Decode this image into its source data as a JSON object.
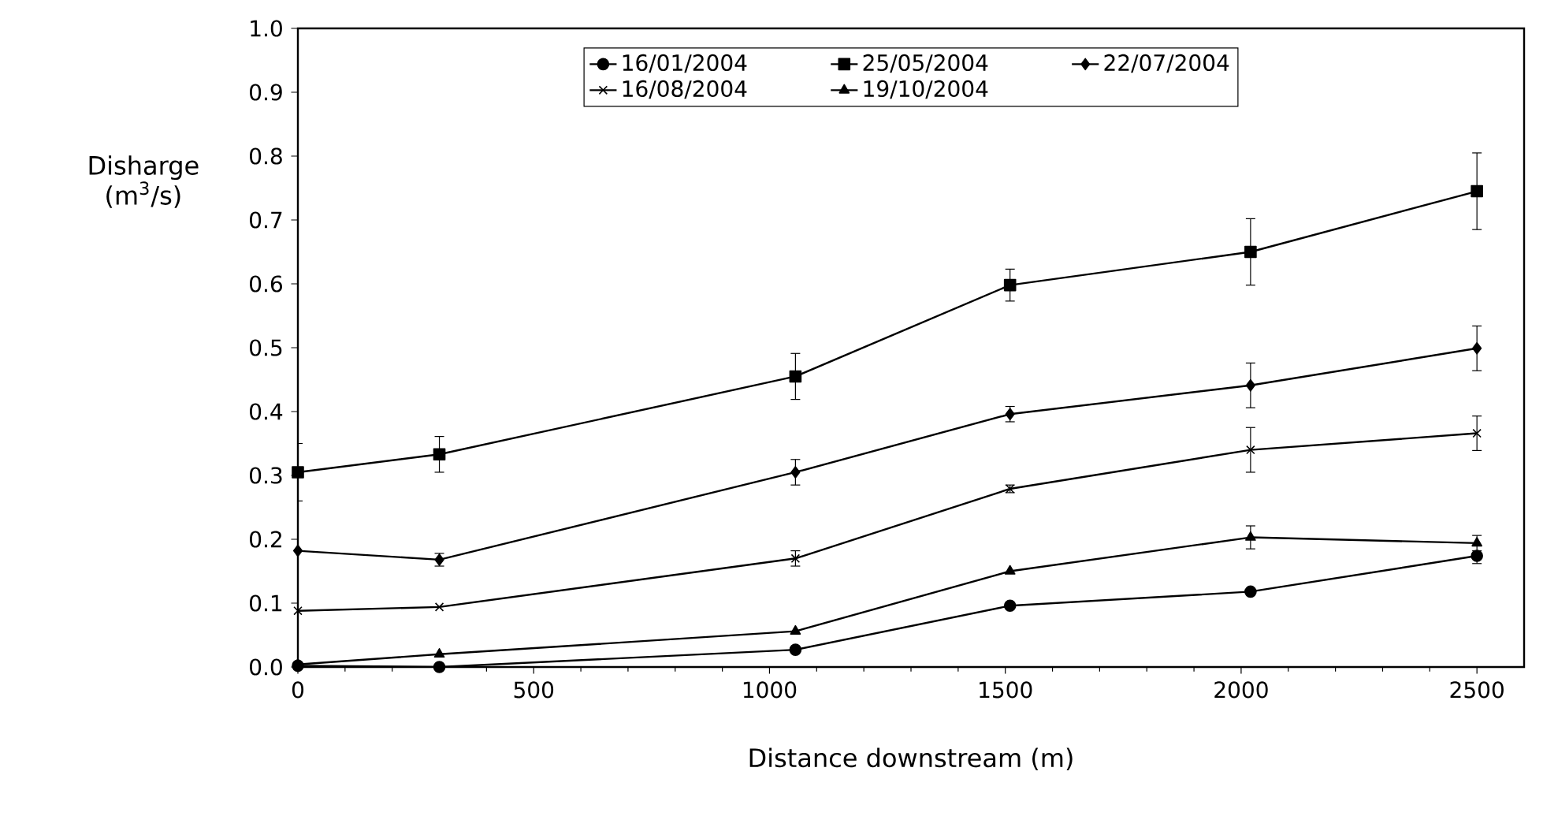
{
  "chart_data": {
    "type": "line",
    "xlabel": "Distance downstream (m)",
    "ylabel": "Disharge (m$^{3}$/s)",
    "xlim": [
      0,
      2600
    ],
    "xticks": [
      0,
      500,
      1000,
      1500,
      2000,
      2500
    ],
    "ylim": [
      0,
      1
    ],
    "yticks": [
      {
        "value": 0,
        "label": "0.0"
      },
      0.1,
      0.2,
      0.3,
      0.4,
      0.5,
      0.6,
      0.7,
      0.8,
      0.9,
      {
        "value": 1,
        "label": "1.0"
      }
    ],
    "x": [
      0,
      300,
      1055,
      1510,
      2020,
      2500
    ],
    "legend": "top",
    "line_style": "solid",
    "series": [
      {
        "name": "16/01/2004",
        "color": "#000000",
        "marker": "circle",
        "values": [
          0.002,
          0.0,
          0.027,
          0.096,
          0.118,
          0.174
        ],
        "errors": [
          null,
          null,
          null,
          null,
          null,
          [
            0.162,
            0.174
          ]
        ]
      },
      {
        "name": "25/05/2004",
        "color": "#000000",
        "marker": "square",
        "values": [
          0.305,
          0.333,
          0.455,
          0.598,
          0.65,
          0.745
        ],
        "errors": [
          0.045,
          0.028,
          0.036,
          0.025,
          0.052,
          0.06
        ]
      },
      {
        "name": "22/07/2004",
        "color": "#000000",
        "marker": "diamond",
        "values": [
          0.182,
          0.168,
          0.305,
          0.396,
          0.441,
          0.499
        ],
        "errors": [
          null,
          0.01,
          0.02,
          0.012,
          0.035,
          0.035
        ]
      },
      {
        "name": "16/08/2004",
        "color": "#000000",
        "marker": "cross",
        "values": [
          0.088,
          0.094,
          0.17,
          0.279,
          0.34,
          0.366
        ],
        "errors": [
          null,
          null,
          0.012,
          0.006,
          0.035,
          0.027
        ]
      },
      {
        "name": "19/10/2004",
        "color": "#000000",
        "marker": "triangle",
        "values": [
          0.004,
          0.02,
          0.056,
          0.15,
          0.203,
          0.194
        ],
        "errors": [
          null,
          null,
          null,
          null,
          0.018,
          0.012
        ]
      }
    ]
  }
}
